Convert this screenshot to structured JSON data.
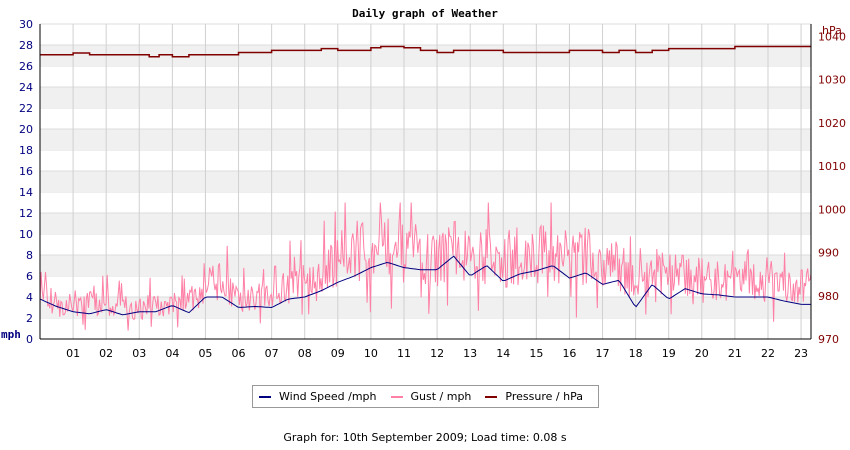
{
  "chart_data": {
    "type": "line",
    "title": "Daily graph of Weather",
    "left_axis": {
      "unit": "mph",
      "ylim": [
        0,
        30
      ],
      "ticks": [
        "0",
        "2",
        "4",
        "6",
        "8",
        "10",
        "12",
        "14",
        "16",
        "18",
        "20",
        "22",
        "24",
        "26",
        "28",
        "30"
      ]
    },
    "right_axis": {
      "unit": "hPa",
      "ylim": [
        970,
        1042.9
      ],
      "ticks": [
        "970",
        "980",
        "990",
        "1000",
        "1010",
        "1020",
        "1030",
        "1040"
      ]
    },
    "x_axis": {
      "xlim": [
        0,
        23.3
      ],
      "ticks": [
        "01",
        "02",
        "03",
        "04",
        "05",
        "06",
        "07",
        "08",
        "09",
        "10",
        "11",
        "12",
        "13",
        "14",
        "15",
        "16",
        "17",
        "18",
        "19",
        "20",
        "21",
        "22",
        "23"
      ]
    },
    "grid": true,
    "legend_position": "bottom",
    "series": [
      {
        "name": "Wind Speed /mph",
        "axis": "left",
        "color": "#000080",
        "x": [
          0,
          0.5,
          1,
          1.5,
          2,
          2.5,
          3,
          3.5,
          4,
          4.5,
          5,
          5.5,
          6,
          6.5,
          7,
          7.5,
          8,
          8.5,
          9,
          9.5,
          10,
          10.5,
          11,
          11.5,
          12,
          12.5,
          13,
          13.5,
          14,
          14.5,
          15,
          15.5,
          16,
          16.5,
          17,
          17.5,
          18,
          18.5,
          19,
          19.5,
          20,
          20.5,
          21,
          21.5,
          22,
          22.5,
          23,
          23.3
        ],
        "values": [
          3.8,
          3.1,
          2.6,
          2.4,
          2.8,
          2.3,
          2.6,
          2.6,
          3.2,
          2.5,
          4.0,
          4.0,
          3.0,
          3.1,
          3.0,
          3.8,
          4.0,
          4.6,
          5.4,
          6.0,
          6.8,
          7.3,
          6.8,
          6.6,
          6.6,
          7.9,
          6.0,
          7.0,
          5.5,
          6.2,
          6.5,
          7.0,
          5.8,
          6.3,
          5.2,
          5.6,
          3.0,
          5.2,
          3.8,
          4.8,
          4.3,
          4.2,
          4.0,
          4.0,
          4.0,
          3.6,
          3.3,
          3.3
        ]
      },
      {
        "name": "Gust / mph",
        "axis": "left",
        "color": "#ff80a6",
        "x": [
          0,
          0.5,
          1,
          1.5,
          2,
          2.5,
          3,
          3.5,
          4,
          4.5,
          5,
          5.5,
          6,
          6.5,
          7,
          7.5,
          8,
          8.5,
          9,
          9.5,
          10,
          10.5,
          11,
          11.5,
          12,
          12.5,
          13,
          13.5,
          14,
          14.5,
          15,
          15.5,
          16,
          16.5,
          17,
          17.5,
          18,
          18.5,
          19,
          19.5,
          20,
          20.5,
          21,
          21.5,
          22,
          22.5,
          23,
          23.3
        ],
        "values": [
          4.5,
          3.2,
          3.1,
          3.5,
          3.0,
          3.2,
          3.0,
          3.0,
          3.5,
          3.5,
          5.0,
          5.5,
          3.5,
          4.0,
          4.0,
          5.0,
          5.5,
          5.5,
          7.5,
          8.5,
          8.0,
          9.0,
          8.0,
          7.5,
          7.5,
          9.0,
          7.5,
          8.0,
          7.0,
          7.5,
          8.0,
          8.5,
          7.5,
          8.0,
          7.0,
          7.0,
          5.0,
          6.5,
          6.0,
          6.0,
          6.0,
          5.5,
          5.5,
          5.5,
          5.0,
          5.0,
          5.0,
          5.0
        ],
        "peak_gust": 13.0
      },
      {
        "name": "Pressure / hPa",
        "axis": "right",
        "color": "#800000",
        "x": [
          0,
          1,
          1.5,
          2,
          3,
          3.3,
          3.6,
          4,
          4.5,
          5,
          5.5,
          6,
          7,
          7.5,
          8,
          8.5,
          9,
          9.5,
          10,
          10.3,
          11,
          11.5,
          12,
          12.5,
          13,
          13.5,
          14,
          15,
          16,
          17,
          17.5,
          18,
          18.5,
          19,
          20,
          20.5,
          21,
          22,
          23,
          23.3
        ],
        "values": [
          1035.8,
          1036.2,
          1035.8,
          1035.8,
          1035.8,
          1035.3,
          1035.8,
          1035.3,
          1035.8,
          1035.8,
          1035.8,
          1036.3,
          1036.8,
          1036.8,
          1036.8,
          1037.2,
          1036.8,
          1036.8,
          1037.4,
          1037.7,
          1037.4,
          1036.8,
          1036.3,
          1036.8,
          1036.8,
          1036.8,
          1036.3,
          1036.3,
          1036.8,
          1036.3,
          1036.8,
          1036.3,
          1036.8,
          1037.2,
          1037.2,
          1037.2,
          1037.7,
          1037.7,
          1037.7,
          1037.7
        ]
      }
    ]
  },
  "footer": "Graph for: 10th September 2009; Load time: 0.08 s"
}
